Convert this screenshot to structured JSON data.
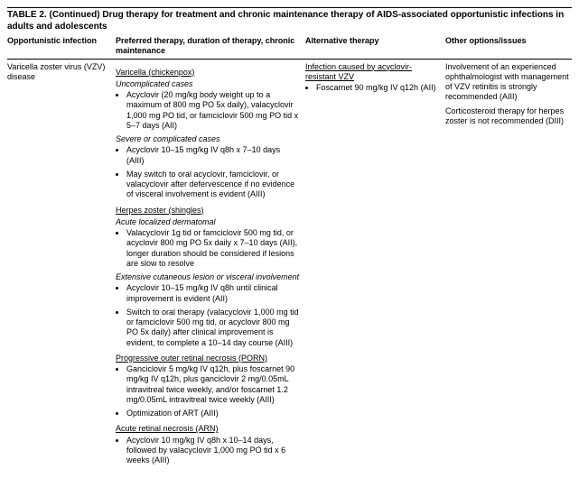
{
  "title": "TABLE 2. (Continued) Drug therapy for treatment and chronic maintenance therapy of AIDS-associated opportunistic infections in adults and adolescents",
  "headers": {
    "c1": "Opportunistic infection",
    "c2": "Preferred therapy, duration of therapy, chronic maintenance",
    "c3": "Alternative therapy",
    "c4": "Other options/issues"
  },
  "row": {
    "infection": "Varicella zoster virus (VZV) disease",
    "preferred": {
      "s1_head": "Varicella (chickenpox)",
      "s1_sub1": "Uncomplicated cases",
      "s1_sub1_b1": "Acyclovir (20 mg/kg body weight up to a maximum of 800 mg PO 5x daily), valacyclovir 1,000 mg PO tid, or famciclovir 500 mg PO tid x 5–7 days (AII)",
      "s1_sub2": "Severe or complicated cases",
      "s1_sub2_b1": "Acyclovir 10–15 mg/kg IV q8h x 7–10 days (AIII)",
      "s1_sub2_b2": "May switch to oral acyclovir, famciclovir, or valacyclovir after defervescence if no evidence of visceral involvement is evident (AIII)",
      "s2_head": "Herpes zoster (shingles)",
      "s2_sub1": "Acute localized dermatomal",
      "s2_sub1_b1": "Valacyclovir 1g tid or famciclovir 500 mg tid, or acyclovir 800 mg PO 5x daily x 7–10 days (AII), longer duration should be considered if lesions are slow to resolve",
      "s2_sub2": "Extensive cutaneous lesion or visceral involvement",
      "s2_sub2_b1": "Acyclovir 10–15 mg/kg IV q8h until clinical improvement is evident (AII)",
      "s2_sub2_b2": "Switch to oral therapy (valacyclovir 1,000 mg tid or famciclovir 500 mg tid, or acyclovir 800 mg PO 5x daily) after clinical improvement is evident, to complete a 10–14 day course (AIII)",
      "s3_head": "Progressive outer retinal necrosis (PORN)",
      "s3_b1": "Ganciclovir 5 mg/kg IV q12h, plus foscarnet 90 mg/kg IV q12h, plus ganciclovir 2 mg/0.05mL intravitreal twice weekly, and/or foscarnet 1.2 mg/0.05mL intravitreal twice weekly (AIII)",
      "s3_b2": "Optimization of ART (AIII)",
      "s4_head": "Acute retinal necrosis (ARN)",
      "s4_b1": "Acyclovir 10 mg/kg IV q8h x 10–14 days, followed by valacyclovir 1,000 mg PO tid x 6 weeks (AIII)"
    },
    "alternative": {
      "head": "Infection caused by acyclovir-resistant VZV",
      "b1": "Foscarnet 90 mg/kg IV q12h (AII)"
    },
    "other": {
      "p1": "Involvement of an experienced ophthalmologist with management of VZV retinitis is strongly recommended (AIII)",
      "p2": "Corticosteroid therapy for herpes zoster is not recommended (DIII)"
    }
  }
}
